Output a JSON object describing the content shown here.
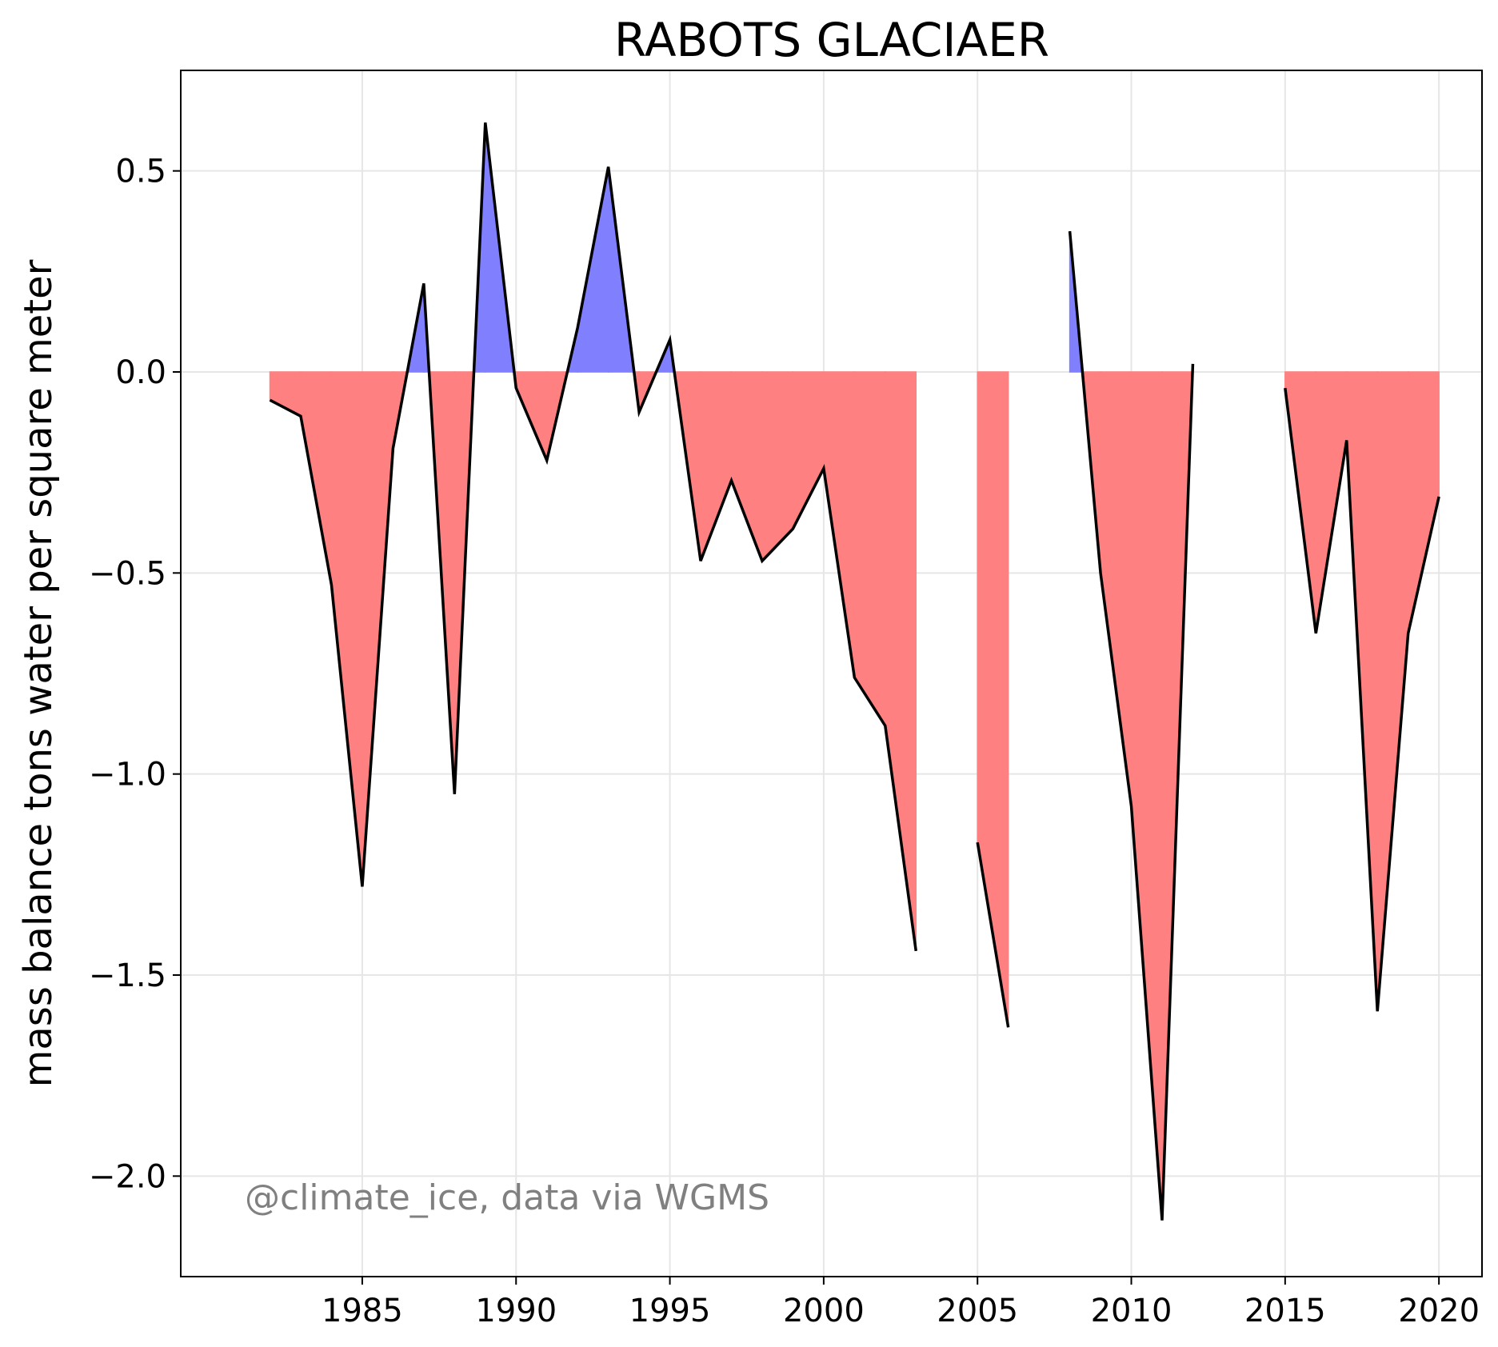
{
  "chart_data": {
    "type": "area",
    "title": "RABOTS GLACIAER",
    "xlabel": "",
    "ylabel": "mass balance tons water per square meter",
    "annotation": "@climate_ice, data via WGMS",
    "xlim": [
      1979.1,
      2021.4
    ],
    "ylim": [
      -2.25,
      0.75
    ],
    "xticks": [
      1985,
      1990,
      1995,
      2000,
      2005,
      2010,
      2015,
      2020
    ],
    "yticks": [
      0.5,
      0.0,
      -0.5,
      -1.0,
      -1.5,
      -2.0
    ],
    "ytick_labels": [
      "0.5",
      "0.0",
      "−0.5",
      "−1.0",
      "−1.5",
      "−2.0"
    ],
    "grid": true,
    "colors": {
      "positive_fill": "#8080ff",
      "negative_fill": "#ff8080",
      "line": "#000000",
      "grid": "#e6e6e6",
      "annotation": "#808080"
    },
    "series": [
      {
        "x": [
          1982,
          1983,
          1984,
          1985,
          1986,
          1987,
          1988,
          1989,
          1990,
          1991,
          1992,
          1993,
          1994,
          1995,
          1996,
          1997,
          1998,
          1999,
          2000,
          2001,
          2002,
          2003,
          2004,
          2005,
          2006,
          2007,
          2008,
          2009,
          2010,
          2011,
          2012,
          2013,
          2014,
          2015,
          2016,
          2017,
          2018,
          2019,
          2020
        ],
        "values": [
          -0.07,
          -0.11,
          -0.53,
          -1.28,
          -0.19,
          0.22,
          -1.05,
          0.62,
          -0.04,
          -0.22,
          0.11,
          0.51,
          -0.1,
          0.08,
          -0.47,
          -0.27,
          -0.47,
          -0.39,
          -0.24,
          -0.76,
          -0.88,
          -1.44,
          null,
          -1.17,
          -1.63,
          null,
          0.35,
          -0.5,
          -1.08,
          -2.11,
          0.02,
          null,
          null,
          -0.04,
          -0.65,
          -0.17,
          -1.59,
          -0.65,
          -0.31
        ]
      }
    ]
  }
}
